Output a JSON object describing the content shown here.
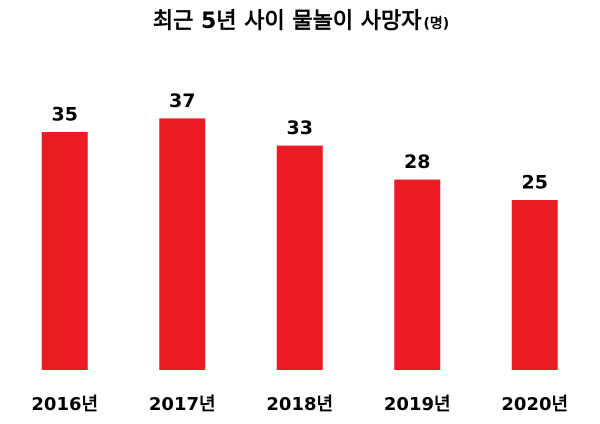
{
  "chart_data": {
    "type": "bar",
    "title": "최근 5년 사이 물놀이 사망자",
    "unit": "(명)",
    "categories": [
      "2016년",
      "2017년",
      "2018년",
      "2019년",
      "2020년"
    ],
    "values": [
      35,
      37,
      33,
      28,
      25
    ],
    "color": "#ed1c24"
  }
}
